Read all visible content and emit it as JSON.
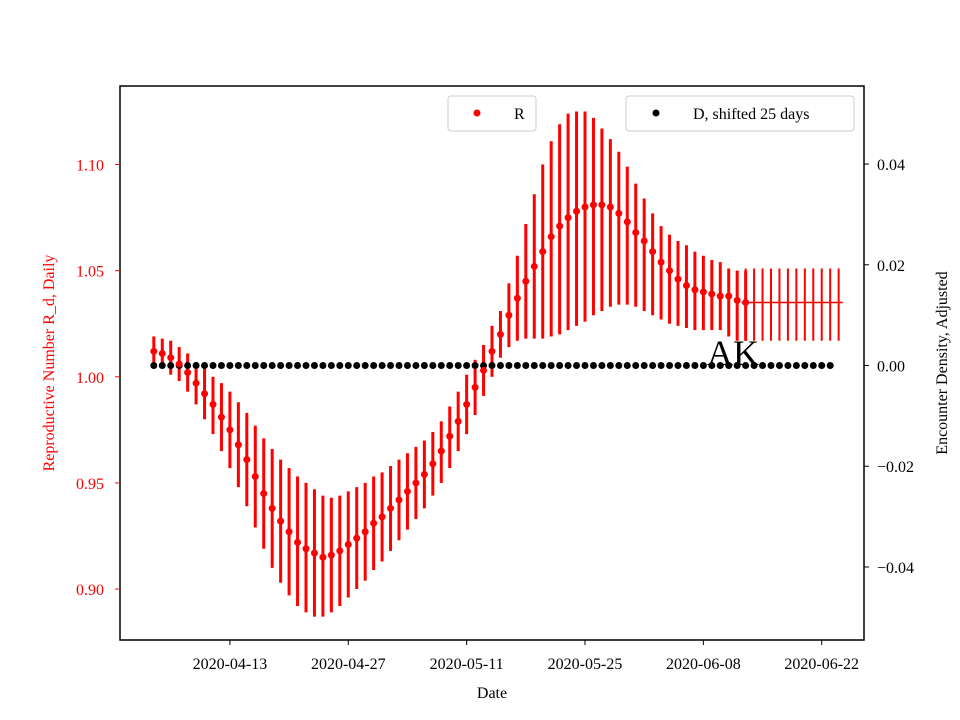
{
  "chart_data": {
    "type": "scatter",
    "title": "",
    "annotation": "AK",
    "xlabel": "Date",
    "ylabel_left": "Reproductive Number R_d, Daily",
    "ylabel_right": "Encounter Density, Adjusted",
    "x_start": "2020-04-04",
    "x_tick_labels": [
      "2020-04-13",
      "2020-04-27",
      "2020-05-11",
      "2020-05-25",
      "2020-06-08",
      "2020-06-22"
    ],
    "x_tick_days": [
      9,
      23,
      37,
      51,
      65,
      79
    ],
    "xlim_days": [
      -4,
      84
    ],
    "ylim_left": [
      0.876,
      1.137
    ],
    "yticks_left": [
      "0.90",
      "0.95",
      "1.00",
      "1.05",
      "1.10"
    ],
    "ylim_right": [
      -0.0545,
      0.0555
    ],
    "yticks_right": [
      "−0.04",
      "−0.02",
      "0.00",
      "0.02",
      "0.04"
    ],
    "grid": false,
    "colors": {
      "R": "#ff0000",
      "D": "#000000",
      "left_axis_text": "#ff0000",
      "right_axis_text": "#000000"
    },
    "legend": [
      {
        "name": "R",
        "color": "#ff0000",
        "placement": "top-center"
      },
      {
        "name": "D, shifted 25 days",
        "color": "#000000",
        "placement": "top-right"
      }
    ],
    "series": [
      {
        "name": "R",
        "axis": "left",
        "x_days": [
          0,
          1,
          2,
          3,
          4,
          5,
          6,
          7,
          8,
          9,
          10,
          11,
          12,
          13,
          14,
          15,
          16,
          17,
          18,
          19,
          20,
          21,
          22,
          23,
          24,
          25,
          26,
          27,
          28,
          29,
          30,
          31,
          32,
          33,
          34,
          35,
          36,
          37,
          38,
          39,
          40,
          41,
          42,
          43,
          44,
          45,
          46,
          47,
          48,
          49,
          50,
          51,
          52,
          53,
          54,
          55,
          56,
          57,
          58,
          59,
          60,
          61,
          62,
          63,
          64,
          65,
          66,
          67,
          68,
          69,
          70
        ],
        "values": [
          1.012,
          1.011,
          1.009,
          1.006,
          1.002,
          0.997,
          0.992,
          0.987,
          0.981,
          0.975,
          0.968,
          0.961,
          0.953,
          0.945,
          0.938,
          0.932,
          0.927,
          0.922,
          0.919,
          0.917,
          0.915,
          0.916,
          0.918,
          0.921,
          0.924,
          0.927,
          0.931,
          0.934,
          0.938,
          0.942,
          0.946,
          0.95,
          0.954,
          0.959,
          0.965,
          0.972,
          0.979,
          0.987,
          0.995,
          1.003,
          1.012,
          1.02,
          1.029,
          1.037,
          1.045,
          1.052,
          1.059,
          1.066,
          1.071,
          1.075,
          1.078,
          1.08,
          1.081,
          1.081,
          1.08,
          1.077,
          1.073,
          1.068,
          1.064,
          1.059,
          1.054,
          1.05,
          1.046,
          1.043,
          1.041,
          1.04,
          1.039,
          1.038,
          1.038,
          1.036,
          1.035
        ],
        "err_low": [
          1.005,
          1.004,
          1.001,
          0.998,
          0.993,
          0.987,
          0.98,
          0.973,
          0.965,
          0.957,
          0.948,
          0.939,
          0.929,
          0.919,
          0.91,
          0.903,
          0.897,
          0.892,
          0.889,
          0.887,
          0.887,
          0.889,
          0.892,
          0.896,
          0.9,
          0.904,
          0.909,
          0.913,
          0.918,
          0.923,
          0.928,
          0.933,
          0.938,
          0.944,
          0.95,
          0.957,
          0.965,
          0.973,
          0.982,
          0.991,
          1.0,
          1.009,
          1.014,
          1.017,
          1.018,
          1.018,
          1.018,
          1.019,
          1.02,
          1.022,
          1.024,
          1.026,
          1.029,
          1.031,
          1.033,
          1.034,
          1.034,
          1.033,
          1.031,
          1.029,
          1.027,
          1.025,
          1.024,
          1.023,
          1.022,
          1.022,
          1.022,
          1.022,
          1.019,
          1.017,
          1.017
        ],
        "err_high": [
          1.019,
          1.018,
          1.017,
          1.014,
          1.011,
          1.007,
          1.004,
          1.0,
          0.997,
          0.993,
          0.988,
          0.983,
          0.977,
          0.971,
          0.966,
          0.961,
          0.957,
          0.953,
          0.95,
          0.947,
          0.944,
          0.943,
          0.944,
          0.946,
          0.948,
          0.95,
          0.953,
          0.955,
          0.958,
          0.961,
          0.964,
          0.967,
          0.97,
          0.974,
          0.979,
          0.986,
          0.993,
          1.001,
          1.008,
          1.015,
          1.024,
          1.031,
          1.044,
          1.057,
          1.072,
          1.086,
          1.1,
          1.111,
          1.119,
          1.124,
          1.125,
          1.125,
          1.122,
          1.117,
          1.112,
          1.106,
          1.099,
          1.091,
          1.084,
          1.077,
          1.071,
          1.067,
          1.064,
          1.062,
          1.059,
          1.057,
          1.055,
          1.054,
          1.051,
          1.05,
          1.05
        ]
      },
      {
        "name": "R",
        "axis": "left",
        "style": "band",
        "x_days_range": [
          70,
          81
        ],
        "value": 1.035,
        "err_low": 1.017,
        "err_high": 1.051
      },
      {
        "name": "D, shifted 25 days",
        "axis": "right",
        "x_days_range": [
          0,
          80
        ],
        "value": 0.0
      }
    ]
  }
}
